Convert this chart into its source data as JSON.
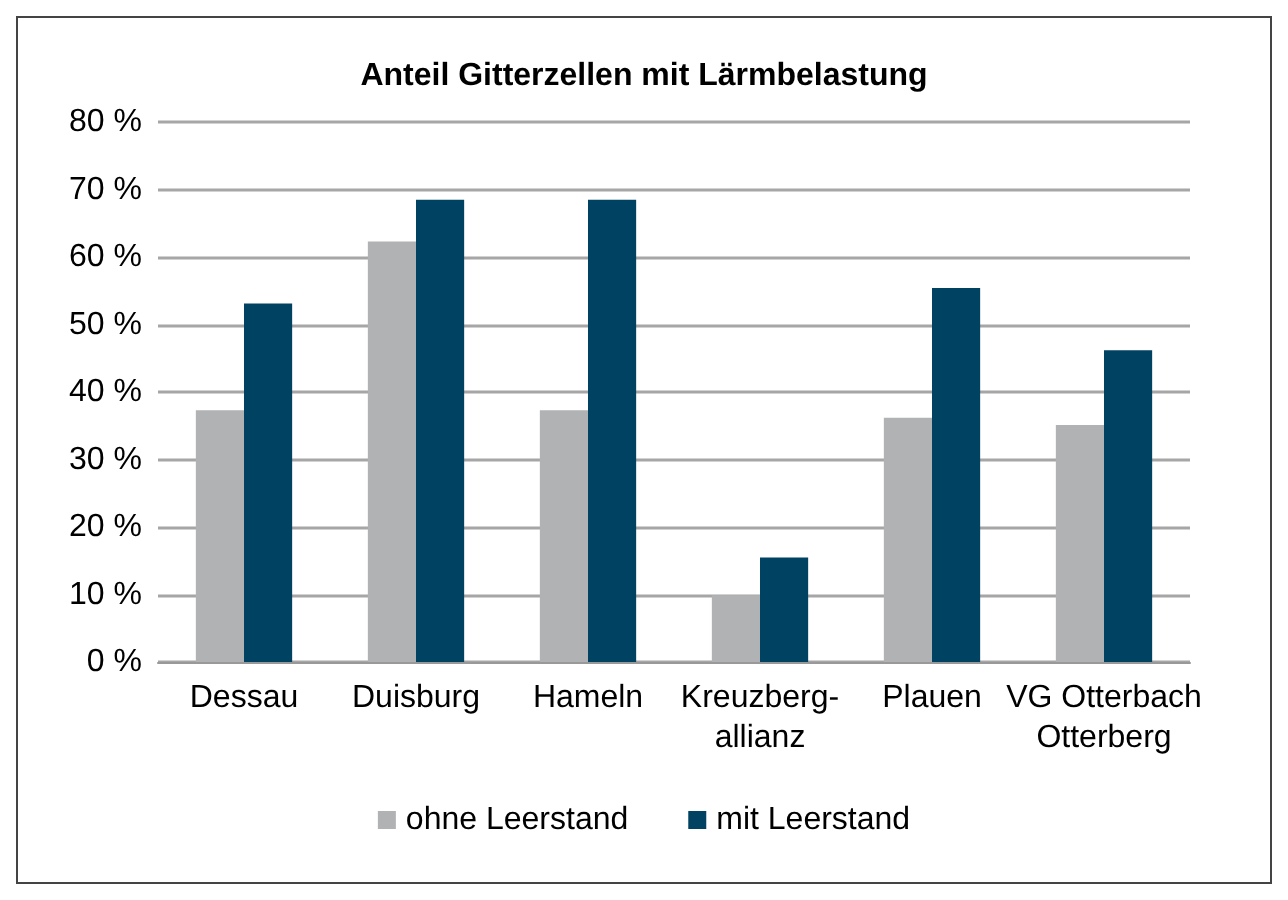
{
  "chart_data": {
    "type": "bar",
    "title": "Anteil Gitterzellen mit Lärmbelastung",
    "categories": [
      "Dessau",
      "Duisburg",
      "Hameln",
      "Kreuzberg-\nallianz",
      "Plauen",
      "VG Otterbach\nOtterberg"
    ],
    "series": [
      {
        "name": "ohne Leerstand",
        "color": "#b1b2b4",
        "values": [
          37.3,
          62.3,
          37.3,
          9.9,
          36.2,
          35.1
        ]
      },
      {
        "name": "mit Leerstand",
        "color": "#004262",
        "values": [
          53.1,
          68.5,
          68.5,
          15.5,
          55.4,
          46.2
        ]
      }
    ],
    "ylim": [
      0,
      80
    ],
    "yticks": [
      {
        "value": 0,
        "label": "0 %"
      },
      {
        "value": 10,
        "label": "10 %"
      },
      {
        "value": 20,
        "label": "20 %"
      },
      {
        "value": 30,
        "label": "30 %"
      },
      {
        "value": 40,
        "label": "40 %"
      },
      {
        "value": 50,
        "label": "50 %"
      },
      {
        "value": 60,
        "label": "60 %"
      },
      {
        "value": 70,
        "label": "70 %"
      },
      {
        "value": 80,
        "label": "80 %"
      }
    ],
    "grid": "y",
    "legend": "bottom"
  }
}
